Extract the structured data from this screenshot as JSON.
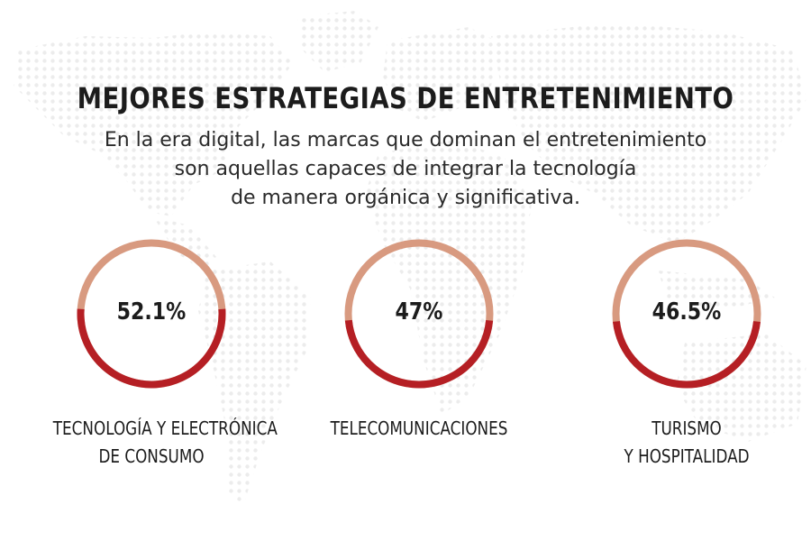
{
  "header": {
    "title": "MEJORES ESTRATEGIAS DE ENTRETENIMIENTO",
    "subtitle_lines": [
      "En la era digital, las marcas que dominan el entretenimiento",
      "son aquellas capaces de integrar la tecnología",
      "de manera orgánica y significativa."
    ]
  },
  "chart_data": {
    "type": "donut",
    "title": "MEJORES ESTRATEGIAS DE ENTRETENIMIENTO",
    "categories": [
      "TECNOLOGÍA Y ELECTRÓNICA DE CONSUMO",
      "TELECOMUNICACIONES",
      "TURISMO Y HOSPITALIDAD"
    ],
    "values": [
      52.1,
      47,
      46.5
    ],
    "unit": "%",
    "items": [
      {
        "value": 52.1,
        "value_label": "52.1%",
        "label_lines": [
          "TECNOLOGÍA Y ELECTRÓNICA",
          "DE CONSUMO"
        ]
      },
      {
        "value": 47,
        "value_label": "47%",
        "label_lines": [
          "TELECOMUNICACIONES"
        ]
      },
      {
        "value": 46.5,
        "value_label": "46.5%",
        "label_lines": [
          "TURISMO",
          "Y HOSPITALIDAD"
        ]
      }
    ],
    "colors": {
      "filled": "#b51f24",
      "remaining": "#d89a80"
    }
  },
  "background": {
    "map_dot_color": "#ececec"
  }
}
